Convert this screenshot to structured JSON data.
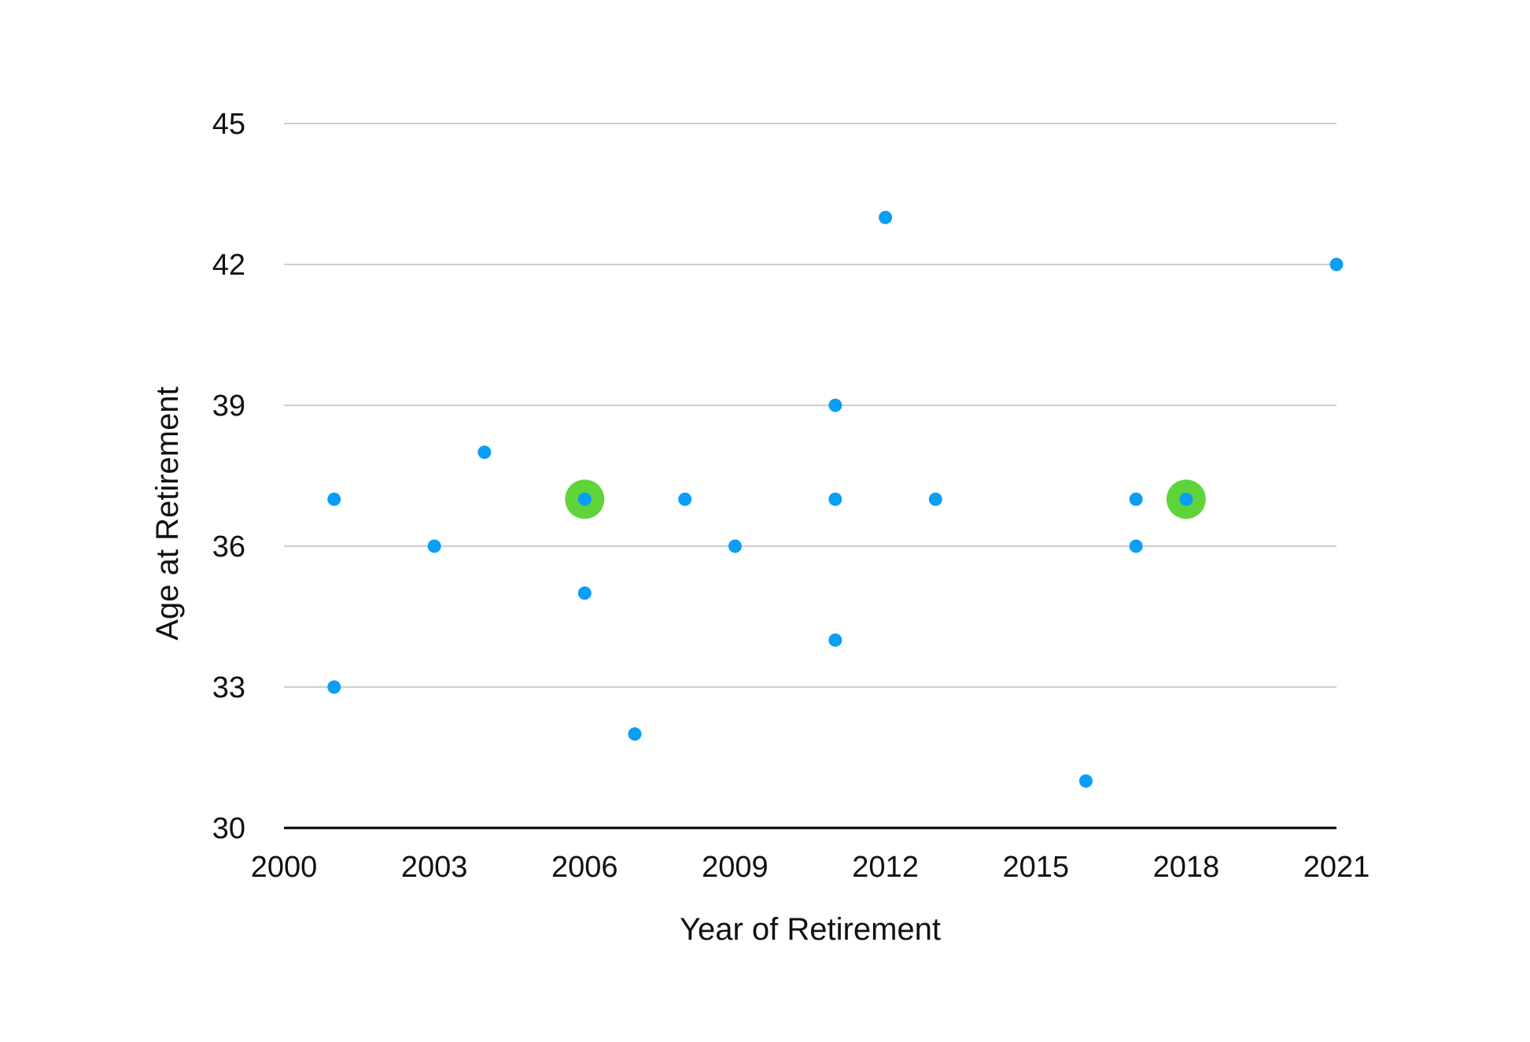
{
  "colors": {
    "point": "#0a9ef7",
    "highlight": "#5fd43a",
    "grid": "#bdbdbd",
    "axis": "#000000"
  },
  "chart_data": {
    "type": "scatter",
    "xlabel": "Year of Retirement",
    "ylabel": "Age at Retirement",
    "xlim": [
      2000,
      2021
    ],
    "ylim": [
      30,
      45
    ],
    "xticks": [
      2000,
      2003,
      2006,
      2009,
      2012,
      2015,
      2018,
      2021
    ],
    "yticks": [
      30,
      33,
      36,
      39,
      42,
      45
    ],
    "grid": true,
    "points": [
      {
        "x": 2001,
        "y": 37
      },
      {
        "x": 2001,
        "y": 33
      },
      {
        "x": 2003,
        "y": 36
      },
      {
        "x": 2004,
        "y": 38
      },
      {
        "x": 2006,
        "y": 37,
        "highlight": true
      },
      {
        "x": 2006,
        "y": 35
      },
      {
        "x": 2007,
        "y": 32
      },
      {
        "x": 2008,
        "y": 37
      },
      {
        "x": 2009,
        "y": 36
      },
      {
        "x": 2011,
        "y": 39
      },
      {
        "x": 2011,
        "y": 37
      },
      {
        "x": 2011,
        "y": 34
      },
      {
        "x": 2012,
        "y": 43
      },
      {
        "x": 2013,
        "y": 37
      },
      {
        "x": 2016,
        "y": 31
      },
      {
        "x": 2017,
        "y": 37
      },
      {
        "x": 2017,
        "y": 36
      },
      {
        "x": 2018,
        "y": 37,
        "highlight": true
      },
      {
        "x": 2021,
        "y": 42
      }
    ]
  }
}
